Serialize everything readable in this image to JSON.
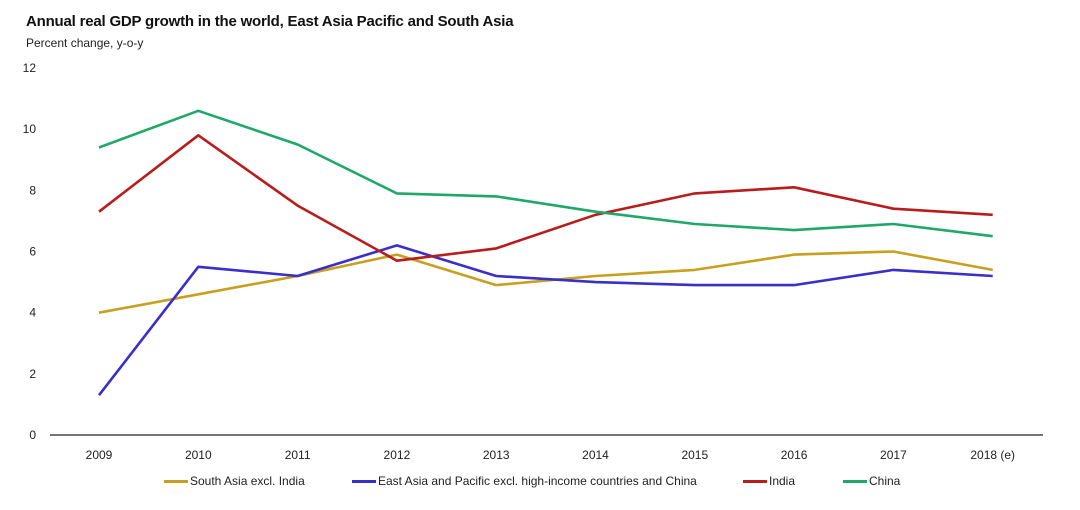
{
  "chart_data": {
    "type": "line",
    "title": "Annual real GDP growth in the world, East Asia Pacific and South Asia",
    "subtitle": "Percent change, y-o-y",
    "xlabel": "",
    "ylabel": "",
    "ylim": [
      0,
      12
    ],
    "yticks": [
      "0",
      "2",
      "4",
      "6",
      "8",
      "10",
      "12"
    ],
    "categories": [
      "2009",
      "2010",
      "2011",
      "2012",
      "2013",
      "2014",
      "2015",
      "2016",
      "2017",
      "2018 (e)"
    ],
    "grid": false,
    "legend_position": "bottom",
    "series": [
      {
        "name": "South Asia excl. India",
        "color": "#c8a020",
        "values": [
          4.0,
          4.6,
          5.2,
          5.9,
          4.9,
          5.2,
          5.4,
          5.9,
          6.0,
          5.4
        ]
      },
      {
        "name": "East Asia and Pacific excl. high-income countries and China",
        "color": "#3a2fc8",
        "values": [
          1.3,
          5.5,
          5.2,
          6.2,
          5.2,
          5.0,
          4.9,
          4.9,
          5.4,
          5.2
        ]
      },
      {
        "name": "India",
        "color": "#b81c1c",
        "values": [
          7.3,
          9.8,
          7.5,
          5.7,
          6.1,
          7.2,
          7.9,
          8.1,
          7.4,
          7.2
        ]
      },
      {
        "name": "China",
        "color": "#1fa86a",
        "values": [
          9.4,
          10.6,
          9.5,
          7.9,
          7.8,
          7.3,
          6.9,
          6.7,
          6.9,
          6.5
        ]
      }
    ]
  }
}
